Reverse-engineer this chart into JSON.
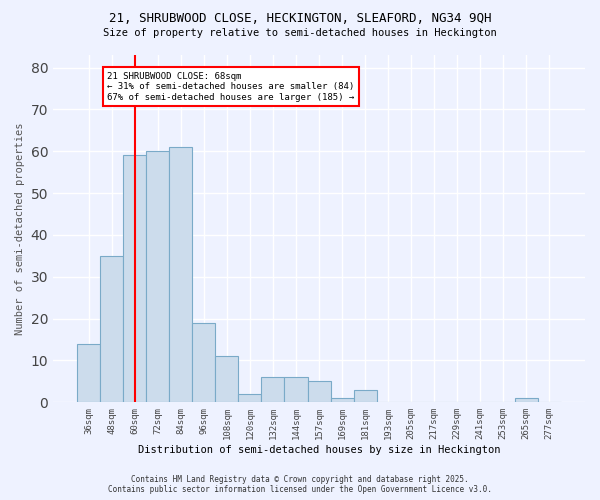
{
  "title1": "21, SHRUBWOOD CLOSE, HECKINGTON, SLEAFORD, NG34 9QH",
  "title2": "Size of property relative to semi-detached houses in Heckington",
  "xlabel": "Distribution of semi-detached houses by size in Heckington",
  "ylabel": "Number of semi-detached properties",
  "categories": [
    "36sqm",
    "48sqm",
    "60sqm",
    "72sqm",
    "84sqm",
    "96sqm",
    "108sqm",
    "120sqm",
    "132sqm",
    "144sqm",
    "157sqm",
    "169sqm",
    "181sqm",
    "193sqm",
    "205sqm",
    "217sqm",
    "229sqm",
    "241sqm",
    "253sqm",
    "265sqm",
    "277sqm"
  ],
  "values": [
    14,
    35,
    59,
    60,
    61,
    19,
    11,
    2,
    6,
    6,
    5,
    1,
    3,
    0,
    0,
    0,
    0,
    0,
    0,
    1,
    0
  ],
  "bar_color": "#ccdcec",
  "bar_edge_color": "#7aaac8",
  "annotation_box_text": "21 SHRUBWOOD CLOSE: 68sqm\n← 31% of semi-detached houses are smaller (84)\n67% of semi-detached houses are larger (185) →",
  "red_line_x": 2.0,
  "background_color": "#eef2ff",
  "footer1": "Contains HM Land Registry data © Crown copyright and database right 2025.",
  "footer2": "Contains public sector information licensed under the Open Government Licence v3.0.",
  "ylim": [
    0,
    83
  ],
  "yticks": [
    0,
    10,
    20,
    30,
    40,
    50,
    60,
    70,
    80
  ]
}
